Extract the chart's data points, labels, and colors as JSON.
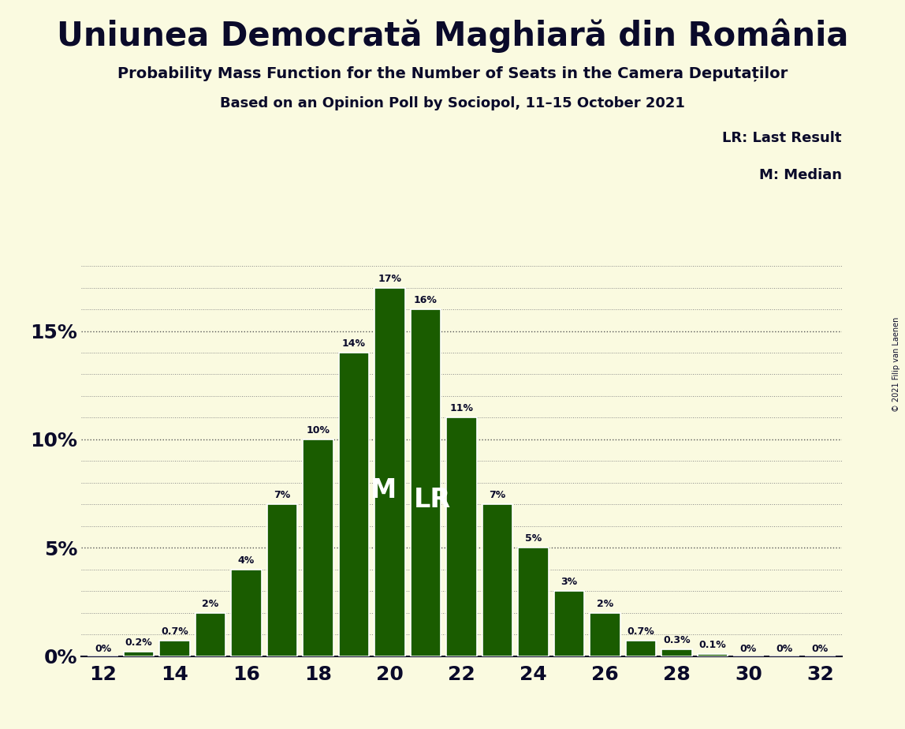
{
  "title": "Uniunea Democrată Maghiară din România",
  "subtitle1": "Probability Mass Function for the Number of Seats in the Camera Deputaților",
  "subtitle2": "Based on an Opinion Poll by Sociopol, 11–15 October 2021",
  "copyright": "© 2021 Filip van Laenen",
  "categories": [
    12,
    13,
    14,
    15,
    16,
    17,
    18,
    19,
    20,
    21,
    22,
    23,
    24,
    25,
    26,
    27,
    28,
    29,
    30,
    31,
    32
  ],
  "values": [
    0.0,
    0.2,
    0.7,
    2.0,
    4.0,
    7.0,
    10.0,
    14.0,
    17.0,
    16.0,
    11.0,
    7.0,
    5.0,
    3.0,
    2.0,
    0.7,
    0.3,
    0.1,
    0.0,
    0.0,
    0.0
  ],
  "labels": [
    "0%",
    "0.2%",
    "0.7%",
    "2%",
    "4%",
    "7%",
    "10%",
    "14%",
    "17%",
    "16%",
    "11%",
    "7%",
    "5%",
    "3%",
    "2%",
    "0.7%",
    "0.3%",
    "0.1%",
    "0%",
    "0%",
    "0%"
  ],
  "bar_color": "#1a5c00",
  "background_color": "#fafae0",
  "text_color": "#0a0a2a",
  "median_seat": 20,
  "last_result_seat": 21,
  "yticks": [
    0,
    5,
    10,
    15
  ],
  "ylim": [
    0,
    18.5
  ],
  "legend_lr": "LR: Last Result",
  "legend_m": "M: Median"
}
